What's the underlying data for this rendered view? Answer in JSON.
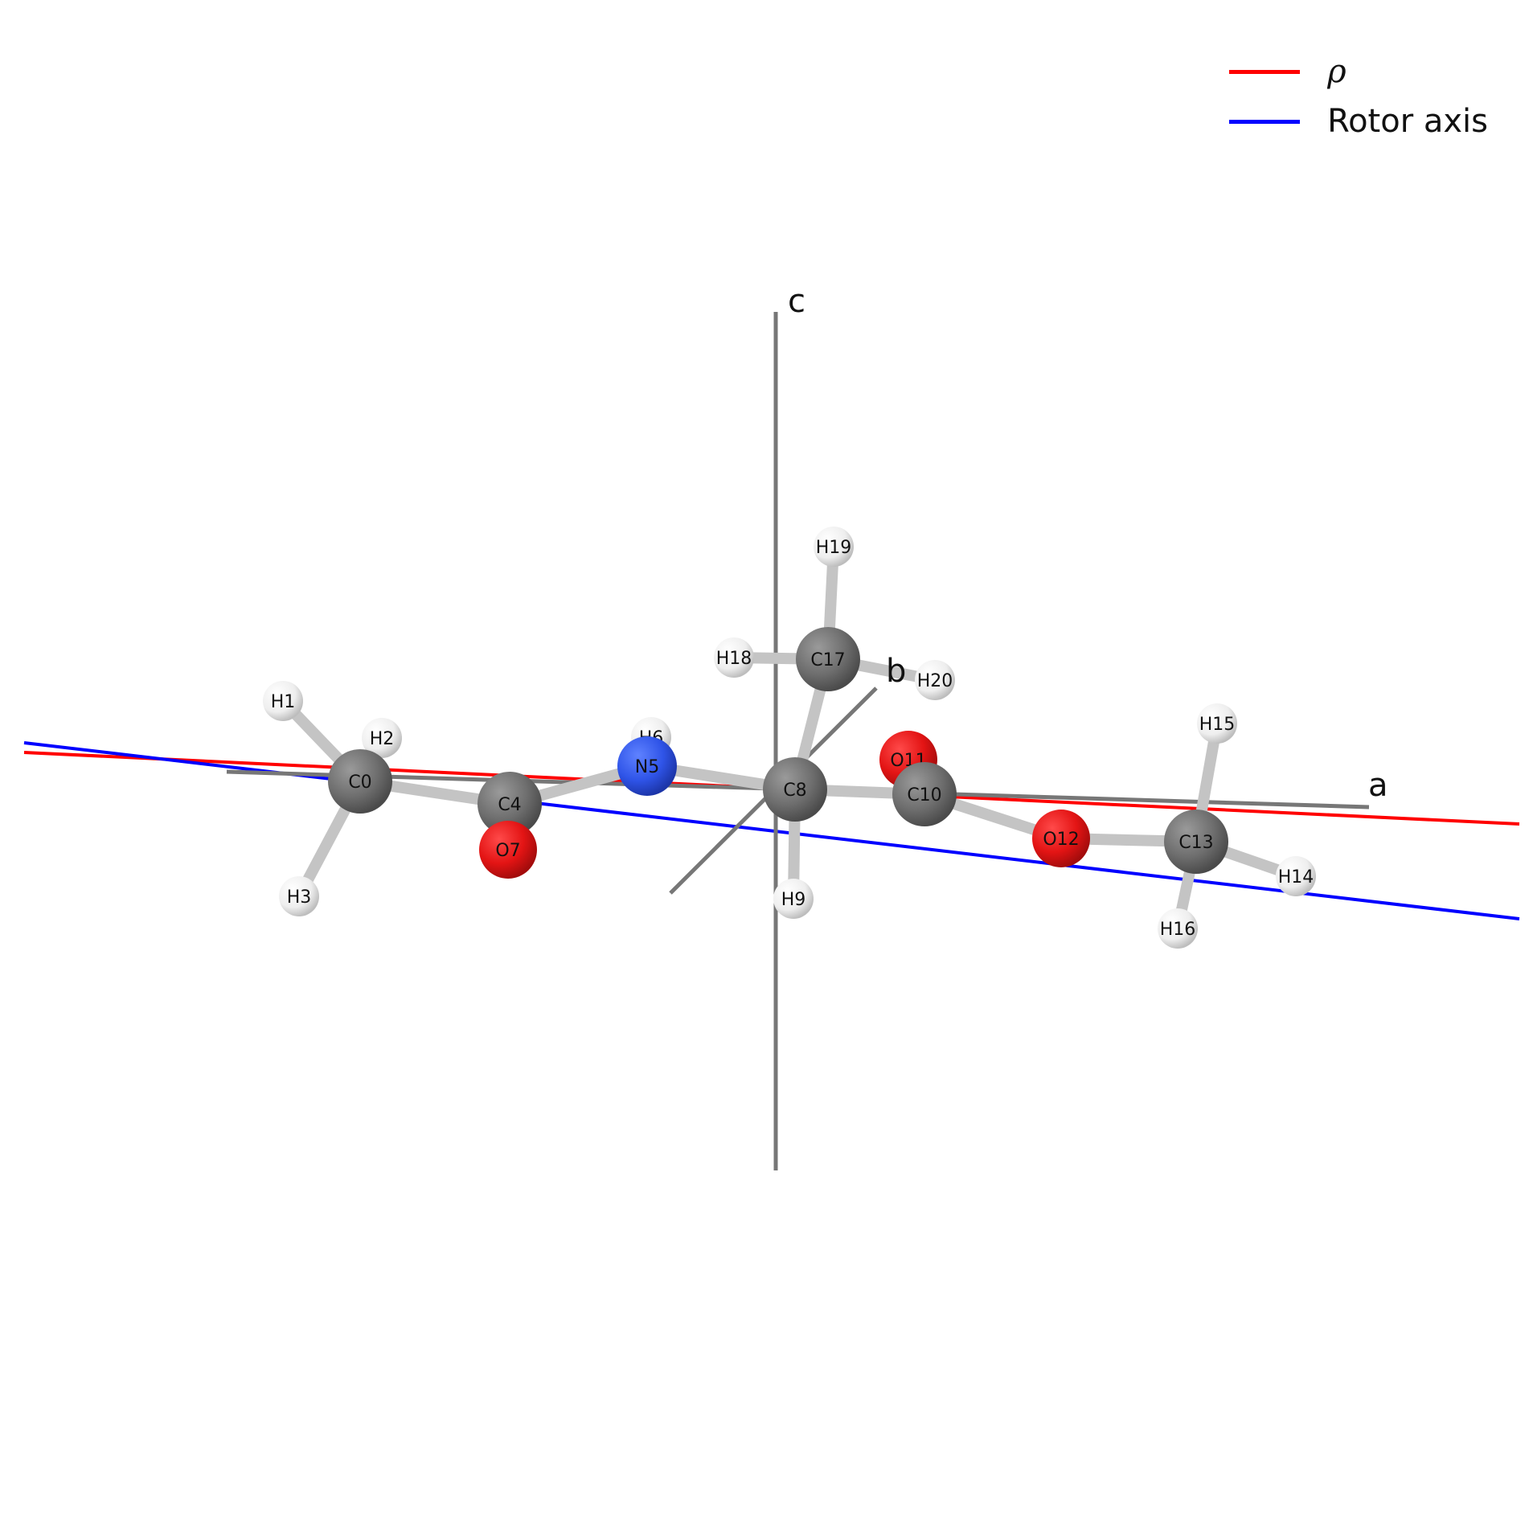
{
  "legend": [
    {
      "label": "ρ",
      "color": "#ff0000"
    },
    {
      "label": "Rotor axis",
      "color": "#0000ff"
    }
  ],
  "axes": {
    "a": "a",
    "b": "b",
    "c": "c"
  },
  "colors": {
    "carbon": "#6e6e6e",
    "hydrogen": "#f2f2f2",
    "oxygen": "#e31414",
    "nitrogen": "#2f54e8",
    "axis": "#777777",
    "bond": "#c4c4c4"
  },
  "atoms": [
    {
      "id": "C0",
      "element": "C"
    },
    {
      "id": "H1",
      "element": "H"
    },
    {
      "id": "H2",
      "element": "H"
    },
    {
      "id": "H3",
      "element": "H"
    },
    {
      "id": "C4",
      "element": "C"
    },
    {
      "id": "N5",
      "element": "N"
    },
    {
      "id": "H6",
      "element": "H"
    },
    {
      "id": "O7",
      "element": "O"
    },
    {
      "id": "C8",
      "element": "C"
    },
    {
      "id": "H9",
      "element": "H"
    },
    {
      "id": "C10",
      "element": "C"
    },
    {
      "id": "O11",
      "element": "O"
    },
    {
      "id": "O12",
      "element": "O"
    },
    {
      "id": "C13",
      "element": "C"
    },
    {
      "id": "H14",
      "element": "H"
    },
    {
      "id": "H15",
      "element": "H"
    },
    {
      "id": "H16",
      "element": "H"
    },
    {
      "id": "C17",
      "element": "C"
    },
    {
      "id": "H18",
      "element": "H"
    },
    {
      "id": "H19",
      "element": "H"
    },
    {
      "id": "H20",
      "element": "H"
    }
  ],
  "bonds": [
    [
      "C0",
      "H1"
    ],
    [
      "C0",
      "H2"
    ],
    [
      "C0",
      "H3"
    ],
    [
      "C0",
      "C4"
    ],
    [
      "C4",
      "O7"
    ],
    [
      "C4",
      "N5"
    ],
    [
      "N5",
      "H6"
    ],
    [
      "N5",
      "C8"
    ],
    [
      "C8",
      "H9"
    ],
    [
      "C8",
      "C10"
    ],
    [
      "C8",
      "C17"
    ],
    [
      "C10",
      "O11"
    ],
    [
      "C10",
      "O12"
    ],
    [
      "O12",
      "C13"
    ],
    [
      "C13",
      "H14"
    ],
    [
      "C13",
      "H15"
    ],
    [
      "C13",
      "H16"
    ],
    [
      "C17",
      "H18"
    ],
    [
      "C17",
      "H19"
    ],
    [
      "C17",
      "H20"
    ]
  ]
}
